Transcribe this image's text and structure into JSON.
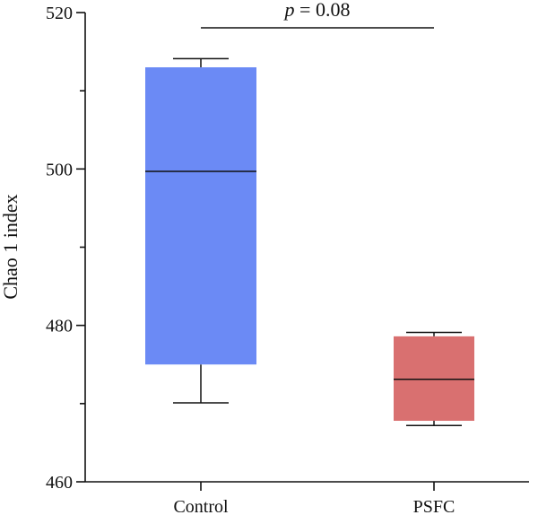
{
  "chart_data": {
    "type": "box",
    "ylabel": "Chao 1 index",
    "ylim": [
      460,
      520
    ],
    "yticks": [
      460,
      480,
      500,
      520
    ],
    "ytick_labels": [
      "460",
      "480",
      "500",
      "520"
    ],
    "categories": [
      "Control",
      "PSFC"
    ],
    "boxes": [
      {
        "category": "Control",
        "whisker_low": 470.1,
        "q1": 475.0,
        "median": 499.7,
        "q3": 513.0,
        "whisker_high": 514.1,
        "color": "#6b8af5"
      },
      {
        "category": "PSFC",
        "whisker_low": 467.2,
        "q1": 467.8,
        "median": 473.1,
        "q3": 478.6,
        "whisker_high": 479.1,
        "color": "#d97070"
      }
    ],
    "annotation": {
      "p_symbol": "p",
      "p_rest": " = 0.08"
    }
  }
}
